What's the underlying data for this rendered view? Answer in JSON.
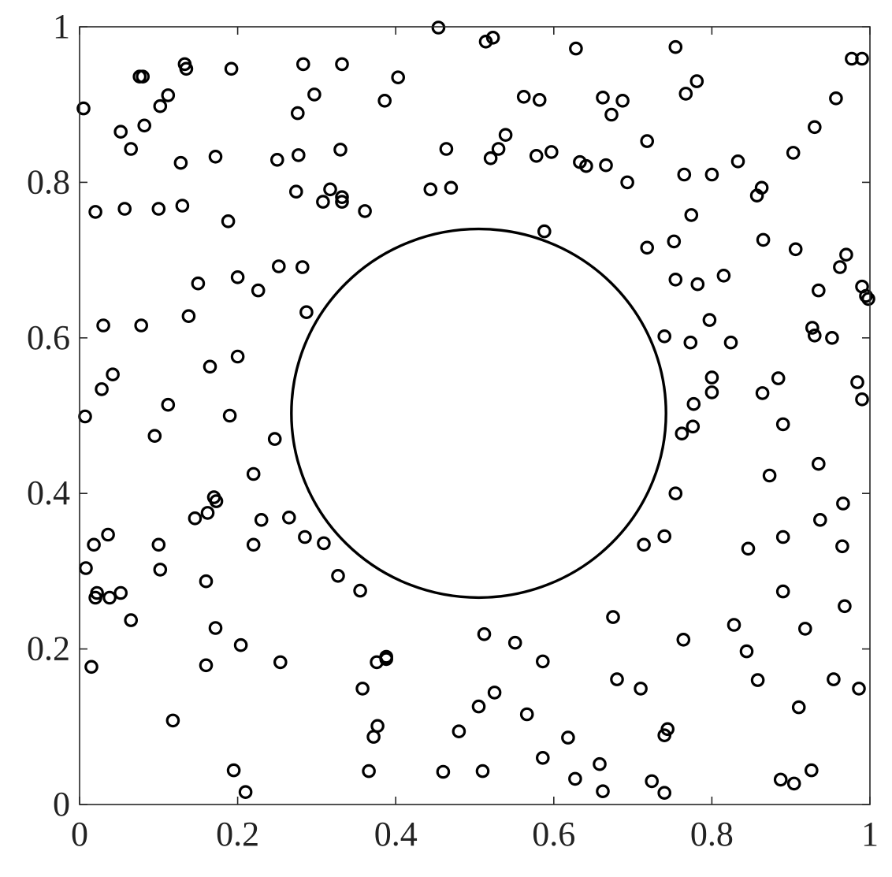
{
  "chart_data": {
    "type": "scatter",
    "title": "",
    "xlabel": "",
    "ylabel": "",
    "xlim": [
      0,
      1
    ],
    "ylim": [
      0,
      1
    ],
    "grid": false,
    "xticks": [
      {
        "value": 0,
        "label": "0"
      },
      {
        "value": 0.2,
        "label": "0.2"
      },
      {
        "value": 0.4,
        "label": "0.4"
      },
      {
        "value": 0.6,
        "label": "0.6"
      },
      {
        "value": 0.8,
        "label": "0.8"
      },
      {
        "value": 1,
        "label": "1"
      }
    ],
    "yticks": [
      {
        "value": 0,
        "label": "0"
      },
      {
        "value": 0.2,
        "label": "0.2"
      },
      {
        "value": 0.4,
        "label": "0.4"
      },
      {
        "value": 0.6,
        "label": "0.6"
      },
      {
        "value": 0.8,
        "label": "0.8"
      },
      {
        "value": 1,
        "label": "1"
      }
    ],
    "circle": {
      "cx": 0.505,
      "cy": 0.503,
      "r": 0.237
    },
    "marker": "o",
    "color": "#000000",
    "points": [
      [
        0.005,
        0.895
      ],
      [
        0.02,
        0.762
      ],
      [
        0.052,
        0.865
      ],
      [
        0.065,
        0.843
      ],
      [
        0.057,
        0.766
      ],
      [
        0.076,
        0.936
      ],
      [
        0.08,
        0.936
      ],
      [
        0.082,
        0.873
      ],
      [
        0.102,
        0.898
      ],
      [
        0.112,
        0.912
      ],
      [
        0.133,
        0.952
      ],
      [
        0.135,
        0.946
      ],
      [
        0.128,
        0.825
      ],
      [
        0.1,
        0.766
      ],
      [
        0.13,
        0.77
      ],
      [
        0.172,
        0.833
      ],
      [
        0.192,
        0.946
      ],
      [
        0.188,
        0.75
      ],
      [
        0.283,
        0.952
      ],
      [
        0.332,
        0.952
      ],
      [
        0.297,
        0.913
      ],
      [
        0.276,
        0.889
      ],
      [
        0.277,
        0.835
      ],
      [
        0.25,
        0.829
      ],
      [
        0.33,
        0.842
      ],
      [
        0.274,
        0.788
      ],
      [
        0.317,
        0.791
      ],
      [
        0.308,
        0.775
      ],
      [
        0.332,
        0.775
      ],
      [
        0.332,
        0.781
      ],
      [
        0.361,
        0.763
      ],
      [
        0.386,
        0.905
      ],
      [
        0.403,
        0.935
      ],
      [
        0.454,
        0.999
      ],
      [
        0.514,
        0.981
      ],
      [
        0.523,
        0.986
      ],
      [
        0.464,
        0.843
      ],
      [
        0.52,
        0.831
      ],
      [
        0.53,
        0.843
      ],
      [
        0.539,
        0.861
      ],
      [
        0.444,
        0.791
      ],
      [
        0.47,
        0.793
      ],
      [
        0.562,
        0.91
      ],
      [
        0.582,
        0.906
      ],
      [
        0.578,
        0.834
      ],
      [
        0.597,
        0.839
      ],
      [
        0.628,
        0.972
      ],
      [
        0.633,
        0.826
      ],
      [
        0.641,
        0.821
      ],
      [
        0.662,
        0.909
      ],
      [
        0.673,
        0.887
      ],
      [
        0.687,
        0.905
      ],
      [
        0.666,
        0.822
      ],
      [
        0.693,
        0.8
      ],
      [
        0.588,
        0.737
      ],
      [
        0.754,
        0.974
      ],
      [
        0.781,
        0.93
      ],
      [
        0.767,
        0.914
      ],
      [
        0.718,
        0.853
      ],
      [
        0.765,
        0.81
      ],
      [
        0.8,
        0.81
      ],
      [
        0.833,
        0.827
      ],
      [
        0.863,
        0.793
      ],
      [
        0.857,
        0.783
      ],
      [
        0.774,
        0.758
      ],
      [
        0.752,
        0.724
      ],
      [
        0.718,
        0.716
      ],
      [
        0.865,
        0.726
      ],
      [
        0.977,
        0.959
      ],
      [
        0.99,
        0.959
      ],
      [
        0.957,
        0.908
      ],
      [
        0.93,
        0.871
      ],
      [
        0.903,
        0.838
      ],
      [
        0.906,
        0.714
      ],
      [
        0.97,
        0.707
      ],
      [
        0.962,
        0.691
      ],
      [
        0.99,
        0.666
      ],
      [
        0.995,
        0.654
      ],
      [
        0.998,
        0.65
      ],
      [
        0.03,
        0.616
      ],
      [
        0.078,
        0.616
      ],
      [
        0.138,
        0.628
      ],
      [
        0.15,
        0.67
      ],
      [
        0.2,
        0.678
      ],
      [
        0.226,
        0.661
      ],
      [
        0.252,
        0.692
      ],
      [
        0.282,
        0.691
      ],
      [
        0.287,
        0.633
      ],
      [
        0.007,
        0.499
      ],
      [
        0.028,
        0.534
      ],
      [
        0.042,
        0.553
      ],
      [
        0.112,
        0.514
      ],
      [
        0.095,
        0.474
      ],
      [
        0.165,
        0.563
      ],
      [
        0.2,
        0.576
      ],
      [
        0.19,
        0.5
      ],
      [
        0.247,
        0.47
      ],
      [
        0.754,
        0.675
      ],
      [
        0.782,
        0.669
      ],
      [
        0.815,
        0.68
      ],
      [
        0.797,
        0.623
      ],
      [
        0.74,
        0.602
      ],
      [
        0.773,
        0.594
      ],
      [
        0.824,
        0.594
      ],
      [
        0.8,
        0.549
      ],
      [
        0.864,
        0.529
      ],
      [
        0.8,
        0.53
      ],
      [
        0.777,
        0.515
      ],
      [
        0.762,
        0.477
      ],
      [
        0.776,
        0.486
      ],
      [
        0.935,
        0.661
      ],
      [
        0.927,
        0.613
      ],
      [
        0.93,
        0.603
      ],
      [
        0.952,
        0.6
      ],
      [
        0.884,
        0.548
      ],
      [
        0.984,
        0.543
      ],
      [
        0.99,
        0.521
      ],
      [
        0.89,
        0.489
      ],
      [
        0.036,
        0.347
      ],
      [
        0.018,
        0.334
      ],
      [
        0.008,
        0.304
      ],
      [
        0.022,
        0.272
      ],
      [
        0.02,
        0.266
      ],
      [
        0.038,
        0.266
      ],
      [
        0.052,
        0.272
      ],
      [
        0.065,
        0.237
      ],
      [
        0.1,
        0.334
      ],
      [
        0.102,
        0.302
      ],
      [
        0.146,
        0.368
      ],
      [
        0.162,
        0.375
      ],
      [
        0.17,
        0.395
      ],
      [
        0.173,
        0.39
      ],
      [
        0.22,
        0.425
      ],
      [
        0.23,
        0.366
      ],
      [
        0.22,
        0.334
      ],
      [
        0.265,
        0.369
      ],
      [
        0.285,
        0.344
      ],
      [
        0.309,
        0.336
      ],
      [
        0.327,
        0.294
      ],
      [
        0.355,
        0.275
      ],
      [
        0.16,
        0.287
      ],
      [
        0.172,
        0.227
      ],
      [
        0.015,
        0.177
      ],
      [
        0.16,
        0.179
      ],
      [
        0.204,
        0.205
      ],
      [
        0.254,
        0.183
      ],
      [
        0.118,
        0.108
      ],
      [
        0.754,
        0.4
      ],
      [
        0.873,
        0.423
      ],
      [
        0.935,
        0.438
      ],
      [
        0.966,
        0.387
      ],
      [
        0.937,
        0.366
      ],
      [
        0.714,
        0.334
      ],
      [
        0.74,
        0.345
      ],
      [
        0.846,
        0.329
      ],
      [
        0.89,
        0.344
      ],
      [
        0.965,
        0.332
      ],
      [
        0.89,
        0.274
      ],
      [
        0.968,
        0.255
      ],
      [
        0.675,
        0.241
      ],
      [
        0.764,
        0.212
      ],
      [
        0.828,
        0.231
      ],
      [
        0.844,
        0.197
      ],
      [
        0.918,
        0.226
      ],
      [
        0.858,
        0.16
      ],
      [
        0.954,
        0.161
      ],
      [
        0.986,
        0.149
      ],
      [
        0.68,
        0.161
      ],
      [
        0.71,
        0.149
      ],
      [
        0.91,
        0.125
      ],
      [
        0.512,
        0.219
      ],
      [
        0.551,
        0.208
      ],
      [
        0.586,
        0.184
      ],
      [
        0.376,
        0.183
      ],
      [
        0.388,
        0.19
      ],
      [
        0.388,
        0.187
      ],
      [
        0.358,
        0.149
      ],
      [
        0.525,
        0.144
      ],
      [
        0.505,
        0.126
      ],
      [
        0.566,
        0.116
      ],
      [
        0.377,
        0.101
      ],
      [
        0.372,
        0.087
      ],
      [
        0.48,
        0.094
      ],
      [
        0.618,
        0.086
      ],
      [
        0.586,
        0.06
      ],
      [
        0.658,
        0.052
      ],
      [
        0.744,
        0.097
      ],
      [
        0.74,
        0.089
      ],
      [
        0.195,
        0.044
      ],
      [
        0.21,
        0.016
      ],
      [
        0.366,
        0.043
      ],
      [
        0.46,
        0.042
      ],
      [
        0.51,
        0.043
      ],
      [
        0.627,
        0.033
      ],
      [
        0.662,
        0.017
      ],
      [
        0.724,
        0.03
      ],
      [
        0.74,
        0.015
      ],
      [
        0.887,
        0.032
      ],
      [
        0.904,
        0.027
      ],
      [
        0.926,
        0.044
      ]
    ]
  }
}
